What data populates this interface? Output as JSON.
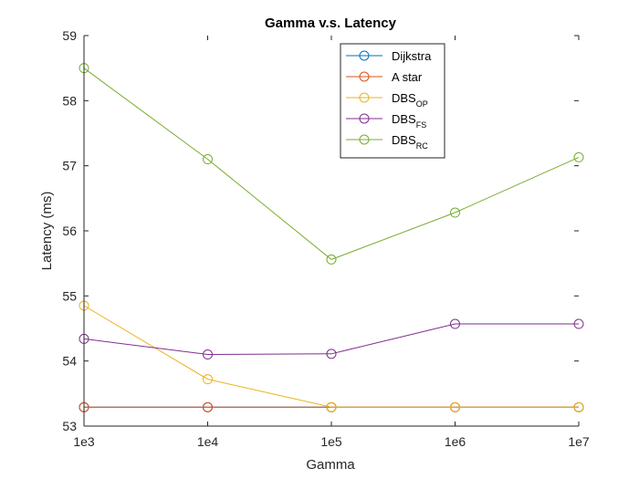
{
  "chart_data": {
    "type": "line",
    "title": "Gamma v.s. Latency",
    "xlabel": "Gamma",
    "ylabel": "Latency (ms)",
    "x": [
      "1e3",
      "1e4",
      "1e5",
      "1e6",
      "1e7"
    ],
    "ylim": [
      53,
      59
    ],
    "yticks": [
      53,
      54,
      55,
      56,
      57,
      58,
      59
    ],
    "grid": false,
    "legend_position": "top-right",
    "series": [
      {
        "name": "Dijkstra",
        "name_main": "Dijkstra",
        "name_sub": "",
        "color": "#0072BD",
        "values": [
          53.29,
          53.29,
          53.29,
          53.29,
          53.29
        ]
      },
      {
        "name": "A star",
        "name_main": "A star",
        "name_sub": "",
        "color": "#D95319",
        "values": [
          53.29,
          53.29,
          53.29,
          53.29,
          53.29
        ]
      },
      {
        "name": "DBS_OP",
        "name_main": "DBS",
        "name_sub": "OP",
        "color": "#EDB120",
        "values": [
          54.85,
          53.72,
          53.29,
          53.29,
          53.29
        ]
      },
      {
        "name": "DBS_FS",
        "name_main": "DBS",
        "name_sub": "FS",
        "color": "#7E2F8E",
        "values": [
          54.34,
          54.1,
          54.11,
          54.57,
          54.57
        ]
      },
      {
        "name": "DBS_RC",
        "name_main": "DBS",
        "name_sub": "RC",
        "color": "#77AC30",
        "values": [
          58.5,
          57.1,
          55.56,
          56.28,
          57.13
        ]
      }
    ]
  }
}
